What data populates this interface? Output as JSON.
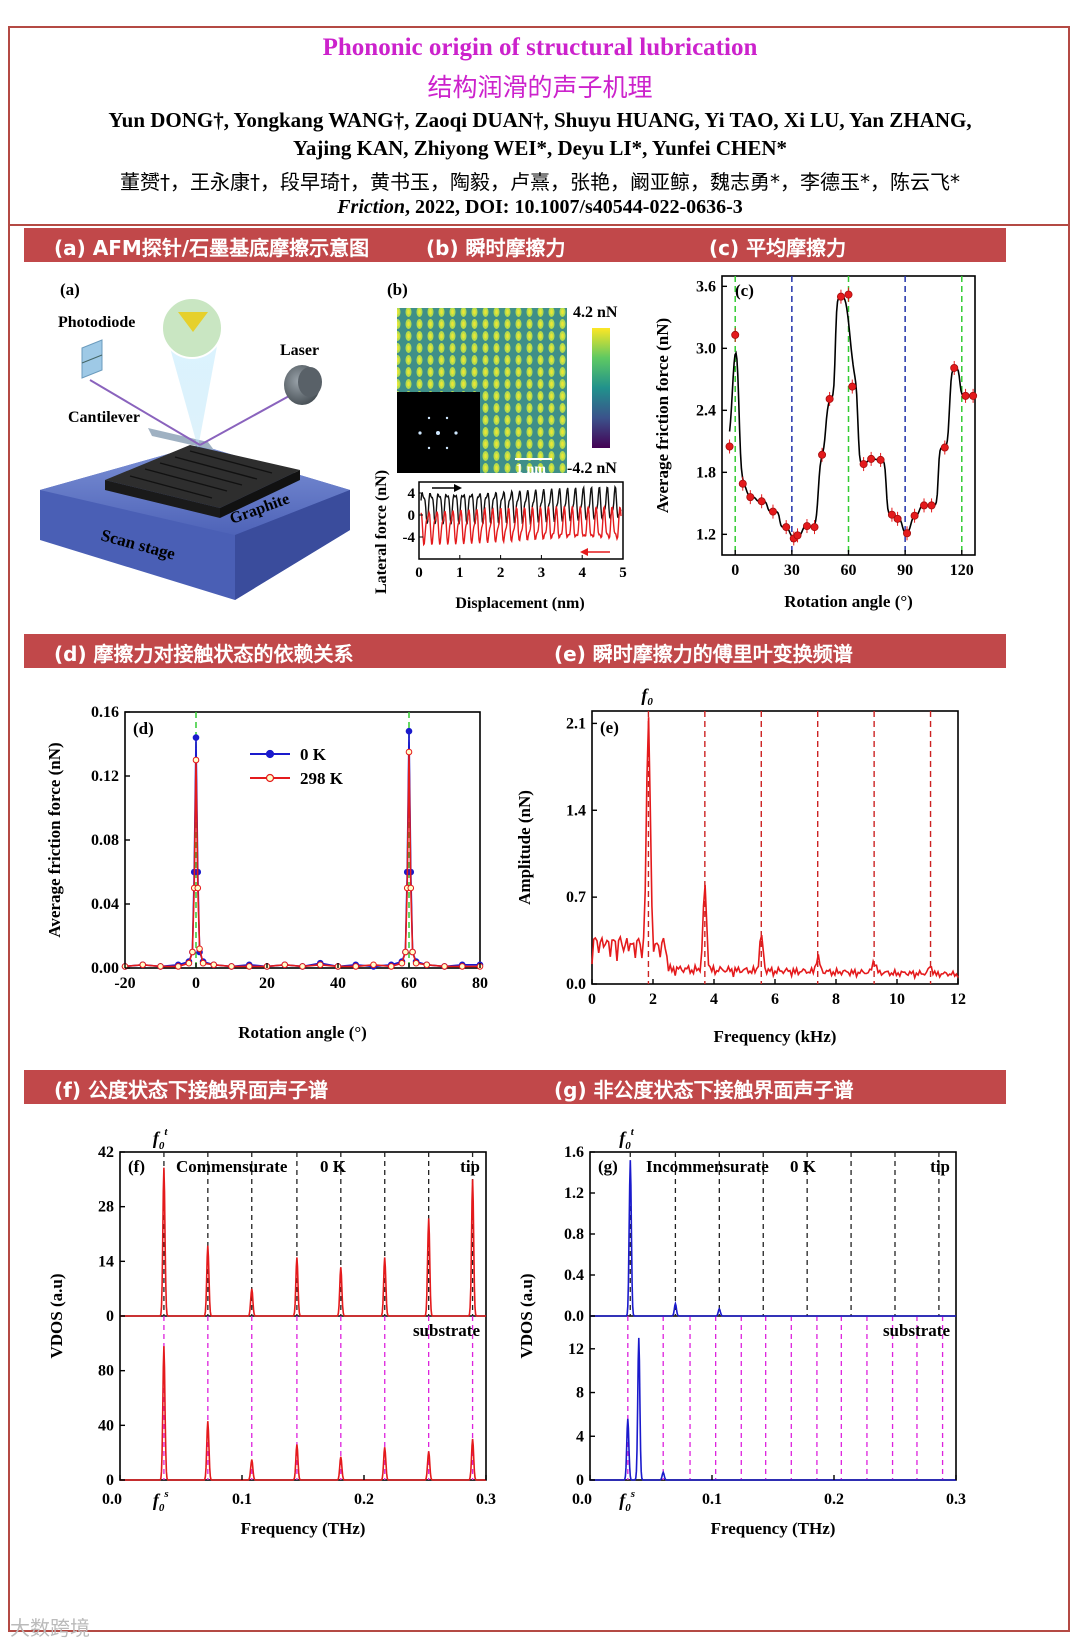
{
  "header": {
    "title_en": "Phononic origin of structural lubrication",
    "title_zh": "结构润滑的声子机理",
    "authors_en_line1": "Yun DONG†, Yongkang WANG†, Zaoqi DUAN†, Shuyu HUANG, Yi TAO, Xi LU, Yan ZHANG,",
    "authors_en_line2": "Yajing KAN, Zhiyong WEI*, Deyu LI*, Yunfei CHEN*",
    "authors_zh": "董赟†，王永康†，段早琦†，黄书玉，陶毅，卢熹，张艳，阚亚鲸，魏志勇*，李德玉*，陈云飞*",
    "citation_journal": "Friction",
    "citation_rest": ", 2022, DOI: 10.1007/s40544-022-0636-3"
  },
  "sections": {
    "a": "(a) AFM探针/石墨基底摩擦示意图",
    "b": "(b) 瞬时摩擦力",
    "c": "(c) 平均摩擦力",
    "d": "(d) 摩擦力对接触状态的依赖关系",
    "e": "(e) 瞬时摩擦力的傅里叶变换频谱",
    "f": "(f) 公度状态下接触界面声子谱",
    "g": "(g) 非公度状态下接触界面声子谱"
  },
  "schematic": {
    "panel_label": "(a)",
    "photodiode": "Photodiode",
    "laser": "Laser",
    "cantilever": "Cantilever",
    "graphite": "Graphite",
    "scan_stage": "Scan stage"
  },
  "panel_b": {
    "panel_label": "(b)",
    "colorbar_max": "4.2 nN",
    "colorbar_min": "-4.2 nN",
    "scale_bar": "1 nm",
    "xlabel": "Displacement (nm)",
    "ylabel": "Lateral force (nN)",
    "xticks": [
      "0",
      "1",
      "2",
      "3",
      "4",
      "5"
    ],
    "yticks": [
      "4",
      "0",
      "-4"
    ]
  },
  "colors": {
    "accent": "#c1484a",
    "title": "#cc22cc",
    "red": "#e41a1c",
    "blue": "#1a1acc",
    "green": "#33cc33",
    "magenta": "#dd22dd"
  },
  "chart_data": [
    {
      "id": "c",
      "type": "scatter",
      "panel_label": "(c)",
      "xlabel": "Rotation angle (°)",
      "ylabel": "Average friction force (nN)",
      "xlim": [
        -7,
        127
      ],
      "ylim": [
        1.0,
        3.7
      ],
      "xticks": [
        "0",
        "30",
        "60",
        "90",
        "120"
      ],
      "yticks": [
        "1.2",
        "1.8",
        "2.4",
        "3.0",
        "3.6"
      ],
      "x": [
        -3,
        0,
        4,
        8,
        14,
        20,
        27,
        31,
        33,
        38,
        42,
        46,
        50,
        56,
        60,
        62,
        68,
        72,
        77,
        83,
        86,
        91,
        95,
        100,
        104,
        111,
        116,
        122,
        126
      ],
      "y": [
        2.05,
        3.13,
        1.69,
        1.56,
        1.52,
        1.42,
        1.27,
        1.16,
        1.19,
        1.28,
        1.27,
        1.97,
        2.51,
        3.5,
        3.52,
        2.63,
        1.88,
        1.93,
        1.92,
        1.39,
        1.35,
        1.21,
        1.38,
        1.48,
        1.48,
        2.04,
        2.81,
        2.54,
        2.54
      ],
      "green_lines": [
        0,
        60,
        120
      ],
      "blue_lines": [
        30,
        90
      ]
    },
    {
      "id": "d",
      "type": "line",
      "panel_label": "(d)",
      "xlabel": "Rotation angle (°)",
      "ylabel": "Average friction force (nN)",
      "xlim": [
        -20,
        80
      ],
      "ylim": [
        0,
        0.16
      ],
      "xticks": [
        "-20",
        "0",
        "20",
        "40",
        "60",
        "80"
      ],
      "yticks": [
        "0.00",
        "0.04",
        "0.08",
        "0.12",
        "0.16"
      ],
      "series": [
        {
          "name": "0 K",
          "x": [
            -20,
            -15,
            -10,
            -5,
            -2,
            -1,
            -0.5,
            0,
            0.5,
            1,
            2,
            5,
            10,
            15,
            20,
            25,
            30,
            35,
            40,
            45,
            50,
            55,
            58,
            59,
            59.5,
            60,
            60.5,
            61,
            62,
            65,
            70,
            75,
            80
          ],
          "y": [
            0.001,
            0.002,
            0.001,
            0.002,
            0.004,
            0.01,
            0.06,
            0.144,
            0.06,
            0.01,
            0.004,
            0.002,
            0.001,
            0.002,
            0.001,
            0.002,
            0.001,
            0.003,
            0.001,
            0.002,
            0.001,
            0.002,
            0.004,
            0.01,
            0.06,
            0.148,
            0.06,
            0.01,
            0.004,
            0.002,
            0.001,
            0.002,
            0.002
          ]
        },
        {
          "name": "298 K",
          "x": [
            -20,
            -15,
            -10,
            -5,
            -2,
            -1,
            -0.5,
            0,
            0.5,
            1,
            2,
            5,
            10,
            15,
            20,
            25,
            30,
            35,
            40,
            45,
            50,
            55,
            58,
            59,
            59.5,
            60,
            60.5,
            61,
            62,
            65,
            70,
            75,
            80
          ],
          "y": [
            0.001,
            0.002,
            0.001,
            0.001,
            0.003,
            0.01,
            0.05,
            0.13,
            0.05,
            0.012,
            0.003,
            0.002,
            0.001,
            0.001,
            0.001,
            0.002,
            0.001,
            0.002,
            0.001,
            0.001,
            0.002,
            0.001,
            0.003,
            0.01,
            0.05,
            0.135,
            0.05,
            0.01,
            0.003,
            0.002,
            0.001,
            0.001,
            0.001
          ]
        }
      ],
      "green_lines": [
        0,
        60
      ]
    },
    {
      "id": "e",
      "type": "line",
      "panel_label": "(e)",
      "xlabel": "Frequency (kHz)",
      "ylabel": "Amplitude (nN)",
      "annotation": "f0",
      "xlim": [
        0,
        12
      ],
      "ylim": [
        0,
        2.2
      ],
      "xticks": [
        "0",
        "2",
        "4",
        "6",
        "8",
        "10",
        "12"
      ],
      "yticks": [
        "0.0",
        "0.7",
        "1.4",
        "2.1"
      ],
      "peaks": [
        [
          1.85,
          2.15
        ],
        [
          3.7,
          0.78
        ],
        [
          5.55,
          0.35
        ],
        [
          7.4,
          0.17
        ],
        [
          9.25,
          0.15
        ],
        [
          11.1,
          0.1
        ]
      ],
      "red_lines": [
        1.85,
        3.7,
        5.55,
        7.4,
        9.25,
        11.1
      ]
    },
    {
      "id": "f",
      "type": "line",
      "panel_label": "(f)",
      "xlabel": "Frequency (THz)",
      "ylabel": "VDOS (a.u)",
      "state": "Commensurate",
      "temperature": "0 K",
      "top_label": "tip",
      "bottom_label": "substrate",
      "annotation_top": "f0t",
      "annotation_bottom": "f0s",
      "xlim": [
        0,
        0.3
      ],
      "xticks": [
        "0.0",
        "0.1",
        "0.2",
        "0.3"
      ],
      "top_ylim": [
        0,
        42
      ],
      "top_yticks": [
        "0",
        "14",
        "28",
        "42"
      ],
      "bottom_ylim": [
        0,
        120
      ],
      "bottom_yticks": [
        "0",
        "40",
        "80"
      ],
      "tip_peaks": [
        [
          0.036,
          38
        ],
        [
          0.072,
          18
        ],
        [
          0.108,
          7
        ],
        [
          0.145,
          15
        ],
        [
          0.181,
          12.5
        ],
        [
          0.217,
          15
        ],
        [
          0.253,
          25
        ],
        [
          0.289,
          35
        ]
      ],
      "substrate_peaks": [
        [
          0.036,
          98
        ],
        [
          0.072,
          43
        ],
        [
          0.108,
          15
        ],
        [
          0.145,
          26
        ],
        [
          0.181,
          17
        ],
        [
          0.217,
          24
        ],
        [
          0.253,
          21
        ],
        [
          0.289,
          30
        ]
      ],
      "lines": [
        0.036,
        0.072,
        0.108,
        0.145,
        0.181,
        0.217,
        0.253,
        0.289
      ]
    },
    {
      "id": "g",
      "type": "line",
      "panel_label": "(g)",
      "xlabel": "Frequency (THz)",
      "ylabel": "VDOS (a.u)",
      "state": "Incommensurate",
      "temperature": "0 K",
      "top_label": "tip",
      "bottom_label": "substrate",
      "annotation_top": "f0t",
      "annotation_bottom": "f0s",
      "xlim": [
        0,
        0.3
      ],
      "xticks": [
        "0.0",
        "0.1",
        "0.2",
        "0.3"
      ],
      "top_ylim": [
        0,
        1.6
      ],
      "top_yticks": [
        "0.0",
        "0.4",
        "0.8",
        "1.2",
        "1.6"
      ],
      "bottom_ylim": [
        0,
        15
      ],
      "bottom_yticks": [
        "0",
        "4",
        "8",
        "12"
      ],
      "tip_peaks": [
        [
          0.033,
          1.52
        ],
        [
          0.07,
          0.12
        ],
        [
          0.106,
          0.07
        ]
      ],
      "substrate_peaks": [
        [
          0.031,
          5.6
        ],
        [
          0.04,
          13
        ],
        [
          0.06,
          0.7
        ]
      ],
      "tip_lines": [
        0.033,
        0.07,
        0.106,
        0.142,
        0.178,
        0.214,
        0.25,
        0.286
      ],
      "substrate_lines": [
        0.031,
        0.06,
        0.082,
        0.103,
        0.124,
        0.144,
        0.165,
        0.186,
        0.206,
        0.227,
        0.248,
        0.268,
        0.289
      ]
    }
  ],
  "watermark": "大数跨境"
}
